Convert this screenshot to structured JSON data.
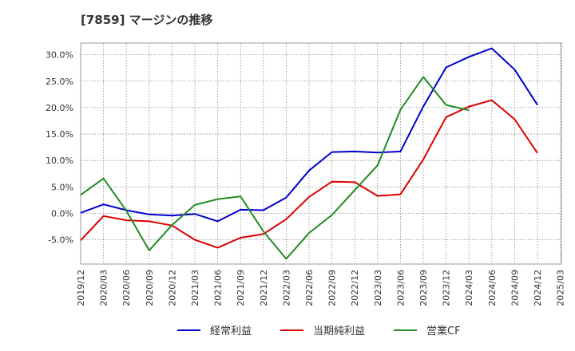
{
  "chart_data": {
    "type": "line",
    "title": "[7859]  マージンの推移",
    "x": [
      "2019/12",
      "2020/03",
      "2020/06",
      "2020/09",
      "2020/12",
      "2021/03",
      "2021/06",
      "2021/09",
      "2021/12",
      "2022/03",
      "2022/06",
      "2022/09",
      "2022/12",
      "2023/03",
      "2023/06",
      "2023/09",
      "2023/12",
      "2024/03",
      "2024/06",
      "2024/09",
      "2024/12"
    ],
    "x_ticks": [
      "2019/12",
      "2020/03",
      "2020/06",
      "2020/09",
      "2020/12",
      "2021/03",
      "2021/06",
      "2021/09",
      "2021/12",
      "2022/03",
      "2022/06",
      "2022/09",
      "2022/12",
      "2023/03",
      "2023/06",
      "2023/09",
      "2023/12",
      "2024/03",
      "2024/06",
      "2024/09",
      "2024/12",
      "2025/03"
    ],
    "y_ticks": [
      "-5.0%",
      "0.0%",
      "5.0%",
      "10.0%",
      "15.0%",
      "20.0%",
      "25.0%",
      "30.0%"
    ],
    "y_tick_values": [
      -5,
      0,
      5,
      10,
      15,
      20,
      25,
      30
    ],
    "ylim": [
      -9.5,
      32.3
    ],
    "grid": true,
    "legend_position": "bottom",
    "series": [
      {
        "name": "経常利益",
        "color": "#0000cc",
        "values": [
          0.1,
          1.7,
          0.6,
          -0.2,
          -0.4,
          -0.1,
          -1.5,
          0.7,
          0.6,
          3.0,
          8.1,
          11.6,
          11.7,
          11.5,
          11.7,
          20.2,
          27.6,
          29.6,
          31.2,
          27.2,
          20.5
        ]
      },
      {
        "name": "当期純利益",
        "color": "#dd0000",
        "values": [
          -5.1,
          -0.5,
          -1.3,
          -1.5,
          -2.3,
          -5.0,
          -6.5,
          -4.6,
          -3.9,
          -1.1,
          3.1,
          6.0,
          5.9,
          3.3,
          3.6,
          10.2,
          18.2,
          20.2,
          21.4,
          17.8,
          11.4
        ]
      },
      {
        "name": "営業CF",
        "color": "#228b22",
        "values": [
          3.5,
          6.6,
          0.5,
          -7.0,
          -2.2,
          1.6,
          2.7,
          3.2,
          -3.4,
          -8.6,
          -3.7,
          -0.3,
          4.4,
          9.1,
          19.6,
          25.8,
          20.5,
          19.5,
          null,
          null,
          null
        ]
      }
    ]
  }
}
